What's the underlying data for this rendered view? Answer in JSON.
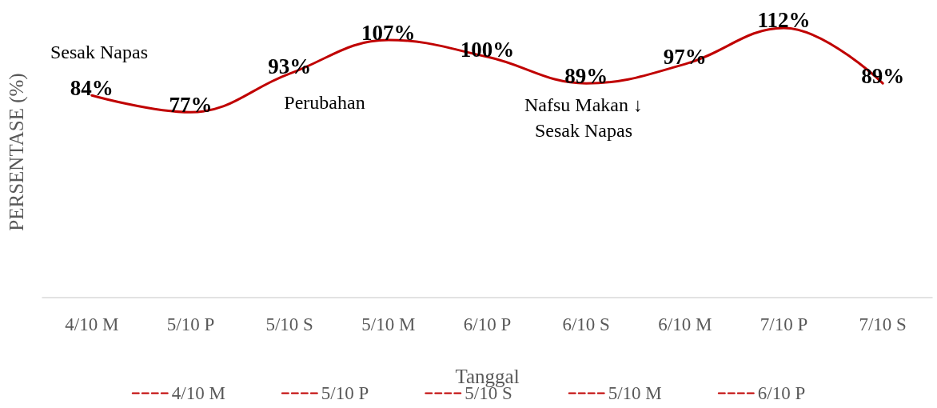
{
  "chart_data": {
    "type": "line",
    "categories": [
      "4/10 M",
      "5/10 P",
      "5/10 S",
      "5/10 M",
      "6/10 P",
      "6/10 S",
      "6/10 M",
      "7/10 P",
      "7/10 S"
    ],
    "series": [
      {
        "color": "#c00000",
        "values": [
          84,
          77,
          93,
          107,
          100,
          89,
          97,
          112,
          89
        ],
        "value_labels": [
          "84%",
          "77%",
          "93%",
          "107%",
          "100%",
          "89%",
          "97%",
          "112%",
          "89%"
        ]
      },
      {
        "name": "4/10 M",
        "color": "#c00000",
        "line_style": "dashed",
        "values": [
          null,
          null,
          null,
          null,
          null,
          null,
          null,
          null,
          null
        ]
      },
      {
        "name": "5/10 P",
        "color": "#c00000",
        "line_style": "dashed",
        "values": [
          null,
          null,
          null,
          null,
          null,
          null,
          null,
          null,
          null
        ]
      },
      {
        "name": "5/10 S",
        "color": "#c00000",
        "line_style": "dashed",
        "values": [
          null,
          null,
          null,
          null,
          null,
          null,
          null,
          null,
          null
        ]
      },
      {
        "name": "5/10 M",
        "color": "#c00000",
        "line_style": "dashed",
        "values": [
          null,
          null,
          null,
          null,
          null,
          null,
          null,
          null,
          null
        ]
      },
      {
        "name": "6/10 P",
        "color": "#c00000",
        "line_style": "dashed",
        "values": [
          null,
          null,
          null,
          null,
          null,
          null,
          null,
          null,
          null
        ]
      }
    ],
    "ylabel": "PERSENTASE (%)",
    "xlabel": "Tanggal",
    "annotations": [
      "Sesak Napas",
      "Perubahan",
      "Nafsu Makan ↓\nSesak Napas"
    ],
    "legend": "bottom",
    "grid": false
  }
}
